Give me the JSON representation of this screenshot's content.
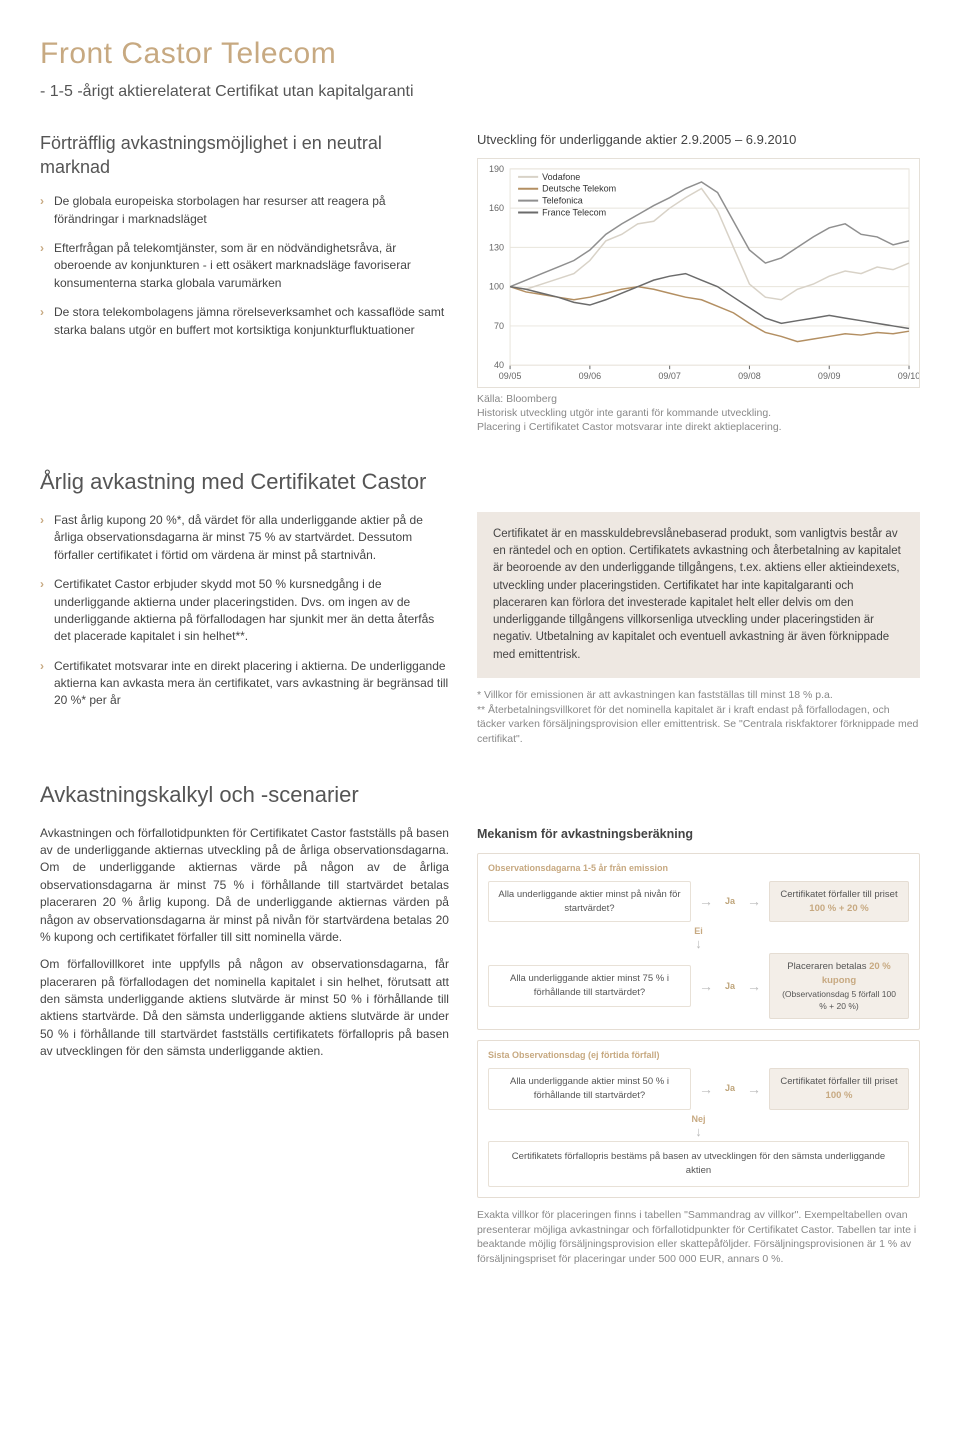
{
  "doc_title": "Front Castor Telecom",
  "doc_subtitle": "- 1-5 -årigt aktierelaterat Certifikat utan kapitalgaranti",
  "intro_heading": "Förträfflig avkastningsmöjlighet i en neutral marknad",
  "intro_bullets": [
    "De globala europeiska storbolagen har resurser att reagera på förändringar i marknadsläget",
    "Efterfrågan på telekomtjänster, som är en nödvändighetsråva, är oberoende av konjunkturen - i ett osäkert marknadsläge favoriserar konsumenterna starka globala varumärken",
    "De stora telekombolagens jämna rörelseverksamhet och kassaflöde samt starka balans utgör en buffert mot kortsiktiga konjunkturfluktuationer"
  ],
  "chart": {
    "title": "Utveckling för underliggande aktier 2.9.2005 – 6.9.2010",
    "type": "line",
    "xlabels": [
      "09/05",
      "09/06",
      "09/07",
      "09/08",
      "09/09",
      "09/10"
    ],
    "yticks": [
      40,
      70,
      100,
      130,
      160,
      190
    ],
    "ylim": [
      40,
      190
    ],
    "series": [
      {
        "name": "Vodafone",
        "color": "#d8d2c7",
        "xs": [
          0,
          0.2,
          0.4,
          0.6,
          0.8,
          1,
          1.2,
          1.4,
          1.6,
          1.8,
          2,
          2.2,
          2.4,
          2.6,
          2.8,
          3,
          3.2,
          3.4,
          3.6,
          3.8,
          4,
          4.2,
          4.4,
          4.6,
          4.8,
          5
        ],
        "ys": [
          100,
          98,
          102,
          106,
          110,
          120,
          135,
          140,
          148,
          150,
          160,
          168,
          175,
          158,
          130,
          102,
          92,
          90,
          98,
          102,
          108,
          112,
          110,
          115,
          113,
          118
        ]
      },
      {
        "name": "Deutsche Telekom",
        "color": "#b38f62",
        "xs": [
          0,
          0.2,
          0.4,
          0.6,
          0.8,
          1,
          1.2,
          1.4,
          1.6,
          1.8,
          2,
          2.2,
          2.4,
          2.6,
          2.8,
          3,
          3.2,
          3.4,
          3.6,
          3.8,
          4,
          4.2,
          4.4,
          4.6,
          4.8,
          5
        ],
        "ys": [
          100,
          96,
          94,
          92,
          90,
          92,
          95,
          98,
          100,
          98,
          95,
          92,
          90,
          85,
          80,
          72,
          65,
          62,
          58,
          60,
          62,
          64,
          63,
          65,
          64,
          66
        ]
      },
      {
        "name": "Telefonica",
        "color": "#8f8f8f",
        "xs": [
          0,
          0.2,
          0.4,
          0.6,
          0.8,
          1,
          1.2,
          1.4,
          1.6,
          1.8,
          2,
          2.2,
          2.4,
          2.6,
          2.8,
          3,
          3.2,
          3.4,
          3.6,
          3.8,
          4,
          4.2,
          4.4,
          4.6,
          4.8,
          5
        ],
        "ys": [
          100,
          105,
          110,
          115,
          120,
          128,
          140,
          148,
          155,
          162,
          168,
          175,
          180,
          172,
          150,
          128,
          118,
          122,
          130,
          138,
          145,
          148,
          140,
          138,
          132,
          135
        ]
      },
      {
        "name": "France Telecom",
        "color": "#6b6b6b",
        "xs": [
          0,
          0.2,
          0.4,
          0.6,
          0.8,
          1,
          1.2,
          1.4,
          1.6,
          1.8,
          2,
          2.2,
          2.4,
          2.6,
          2.8,
          3,
          3.2,
          3.4,
          3.6,
          3.8,
          4,
          4.2,
          4.4,
          4.6,
          4.8,
          5
        ],
        "ys": [
          100,
          98,
          95,
          92,
          88,
          86,
          90,
          95,
          100,
          105,
          108,
          110,
          105,
          100,
          92,
          84,
          76,
          72,
          74,
          76,
          78,
          76,
          74,
          72,
          70,
          68
        ]
      }
    ],
    "background_color": "#ffffff",
    "grid_color": "#e8e4dc",
    "axis_color": "#666666",
    "tick_fontsize": 9,
    "legend_fontsize": 9,
    "line_width": 1.5,
    "source_label": "Källa: Bloomberg",
    "disclaimer1": "Historisk utveckling utgör inte garanti för kommande utveckling.",
    "disclaimer2": "Placering i Certifikatet Castor motsvarar inte direkt aktieplacering."
  },
  "sec2_heading": "Årlig avkastning med Certifikatet Castor",
  "sec2_bullets": [
    "Fast årlig kupong 20 %*, då värdet för alla underliggande aktier på de årliga observationsdagarna är minst 75 % av startvärdet. Dessutom förfaller certifikatet i förtid om värdena är minst på startnivån.",
    "Certifikatet Castor erbjuder skydd mot 50 % kursnedgång i de underliggande aktierna under placeringstiden. Dvs. om ingen av de underliggande aktierna på förfallodagen har sjunkit mer än detta återfås det placerade kapitalet i sin helhet**.",
    "Certifikatet motsvarar inte en direkt placering i aktierna. De underliggande aktierna kan avkasta mera än certifikatet, vars avkastning är begränsad till 20 %* per år"
  ],
  "sec2_box": "Certifikatet är en masskuldebrevslånebaserad produkt, som vanligtvis består av en räntedel och en option. Certifikatets avkastning och återbetalning av kapitalet är beoroende av den underliggande tillgångens, t.ex. aktiens eller aktieindexets, utveckling under placeringstiden. Certifikatet har inte kapitalgaranti och placeraren kan förlora det investerade kapitalet helt eller delvis om den underliggande tillgångens villkorsenliga utveckling under placeringstiden är negativ. Utbetalning av kapitalet och eventuell avkastning är även förknippade med emittentrisk.",
  "sec2_footnote": "* Villkor för emissionen är att avkastningen kan fastställas till minst 18 % p.a.\n** Återbetalningsvillkoret för det nominella kapitalet är i kraft endast på förfallodagen, och täcker varken försäljningsprovision eller emittentrisk. Se \"Centrala riskfaktorer förknippade med certifikat\".",
  "sec3_heading": "Avkastningskalkyl och -scenarier",
  "sec3_para1": "Avkastningen och förfallotidpunkten för Certifikatet Castor fastställs på basen av de underliggande aktiernas utveckling på de årliga observationsdagarna. Om de underliggande aktiernas värde på någon av de årliga observationsdagarna är minst 75 % i förhållande till startvärdet betalas placeraren 20 % årlig kupong. Då de underliggande aktiernas värden på någon av observationsdagarna är minst på nivån för startvärdena betalas 20 % kupong och certifikatet förfaller till sitt nominella värde.",
  "sec3_para2": "Om förfallovillkoret inte uppfylls på någon av observationsdagarna, får placeraren på förfallodagen det nominella kapitalet i sin helhet, förutsatt att den sämsta underliggande aktiens slutvärde är minst 50 % i förhållande till aktiens startvärde. Då den sämsta underliggande aktiens slutvärde är under 50 % i förhållande till startvärdet fastställs certifikatets förfallopris på basen av utvecklingen för den sämsta underliggande aktien.",
  "mechanism_heading": "Mekanism för avkastningsberäkning",
  "flow": {
    "group1_label": "Observationsdagarna 1-5 år från emission",
    "q1": "Alla underliggande aktier minst på nivån för startvärdet?",
    "ja": "Ja",
    "ei": "Ei",
    "nej": "Nej",
    "r1_text": "Certifikatet förfaller till priset",
    "r1_accent": "100 % + 20 %",
    "q2": "Alla underliggande aktier minst 75 % i förhållande till startvärdet?",
    "r2_text": "Placeraren betalas",
    "r2_accent": "20 % kupong",
    "r2_sub": "(Observationsdag 5 förfall 100 % + 20 %)",
    "group2_label": "Sista Observationsdag (ej förtida förfall)",
    "q3": "Alla underliggande aktier minst 50 % i förhållande till startvärdet?",
    "r3_text": "Certifikatet förfaller till priset",
    "r3_accent": "100 %",
    "final": "Certifikatets förfallopris bestäms på basen av utvecklingen för den sämsta underliggande aktien"
  },
  "sec3_footnote": "Exakta villkor för placeringen finns i tabellen \"Sammandrag av villkor\". Exempeltabellen ovan presenterar möjliga avkastningar och förfallotidpunkter för Certifikatet Castor. Tabellen tar inte i beaktande möjlig försäljningsprovision eller skattepåföljder. Försäljningsprovisionen är 1 % av försäljningspriset för placeringar under 500 000 EUR, annars 0 %."
}
